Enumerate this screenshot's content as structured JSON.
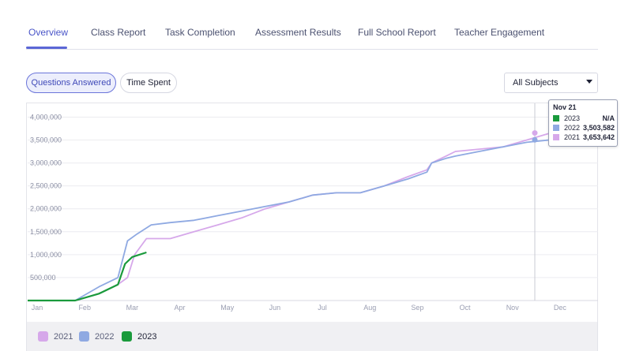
{
  "tabs": [
    {
      "label": "Overview",
      "active": true
    },
    {
      "label": "Class Report"
    },
    {
      "label": "Task Completion"
    },
    {
      "label": "Assessment Results"
    },
    {
      "label": "Full School Report"
    },
    {
      "label": "Teacher Engagement"
    }
  ],
  "toggles": {
    "questions_answered": "Questions Answered",
    "time_spent": "Time Spent"
  },
  "subject_select": {
    "value": "All Subjects"
  },
  "colors": {
    "y2021": "#d6a8ea",
    "y2022": "#8fa9e2",
    "y2023": "#1a9a3c",
    "accent": "#4a55c8"
  },
  "legend": [
    {
      "label": "2021"
    },
    {
      "label": "2022"
    },
    {
      "label": "2023"
    }
  ],
  "tooltip": {
    "title": "Nov 21",
    "rows": [
      {
        "year": "2023",
        "value": "N/A"
      },
      {
        "year": "2022",
        "value": "3,503,582"
      },
      {
        "year": "2021",
        "value": "3,653,642"
      }
    ]
  },
  "chart_data": {
    "type": "line",
    "x_unit": "month",
    "x_ticks": [
      "Jan",
      "Feb",
      "Mar",
      "Apr",
      "May",
      "Jun",
      "Jul",
      "Aug",
      "Sep",
      "Oct",
      "Nov",
      "Dec"
    ],
    "y_ticks": [
      "500,000",
      "1,000,000",
      "1,500,000",
      "2,000,000",
      "2,500,000",
      "3,000,000",
      "3,500,000",
      "4,000,000"
    ],
    "ylim": [
      0,
      4300000
    ],
    "xlim": [
      0,
      12
    ],
    "grid": true,
    "series": [
      {
        "name": "2021",
        "x": [
          0,
          1,
          1.5,
          1.9,
          2.1,
          2.25,
          2.5,
          3,
          3.5,
          4,
          4.5,
          5,
          5.5,
          6,
          6.5,
          7,
          7.5,
          8,
          8.4,
          8.5,
          8.8,
          9,
          9.5,
          10,
          10.5,
          11,
          11.5
        ],
        "values": [
          0,
          0,
          150000,
          350000,
          500000,
          1000000,
          1350000,
          1350000,
          1500000,
          1650000,
          1800000,
          2000000,
          2150000,
          2300000,
          2350000,
          2350000,
          2500000,
          2700000,
          2850000,
          3000000,
          3150000,
          3250000,
          3300000,
          3350000,
          3500000,
          3653642,
          3800000
        ]
      },
      {
        "name": "2022",
        "x": [
          0,
          1,
          1.5,
          1.9,
          2.1,
          2.3,
          2.6,
          3,
          3.5,
          4,
          4.5,
          5,
          5.5,
          6,
          6.5,
          7,
          7.5,
          8,
          8.4,
          8.5,
          8.8,
          9,
          9.5,
          10,
          10.5,
          11,
          11.5
        ],
        "values": [
          0,
          0,
          300000,
          500000,
          1300000,
          1450000,
          1650000,
          1700000,
          1750000,
          1850000,
          1950000,
          2050000,
          2150000,
          2300000,
          2350000,
          2350000,
          2500000,
          2650000,
          2800000,
          3000000,
          3100000,
          3150000,
          3250000,
          3350000,
          3450000,
          3503582,
          3650000
        ]
      },
      {
        "name": "2023",
        "x": [
          0,
          1,
          1.5,
          1.9,
          2.05,
          2.2,
          2.5
        ],
        "values": [
          0,
          0,
          150000,
          350000,
          800000,
          950000,
          1050000
        ]
      }
    ]
  }
}
